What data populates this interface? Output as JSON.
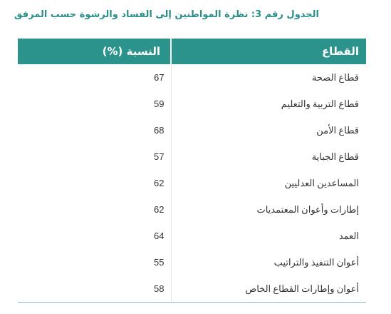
{
  "caption": "الجدول رقم  3: نظرة المواطنين إلى الفساد والرشوة حسب المرفق",
  "table": {
    "headers": {
      "sector": "القطاع",
      "percentage": "النسبة (%)"
    },
    "rows": [
      {
        "sector": "قطاع الصحة",
        "percentage": "67"
      },
      {
        "sector": "قطاع التربية والتعليم",
        "percentage": "59"
      },
      {
        "sector": "قطاع الأمن",
        "percentage": "68"
      },
      {
        "sector": "قطاع الجباية",
        "percentage": "57"
      },
      {
        "sector": "المساعدين العدليين",
        "percentage": "62"
      },
      {
        "sector": "إطارات وأعوان المعتمديات",
        "percentage": "62"
      },
      {
        "sector": "العمد",
        "percentage": "64"
      },
      {
        "sector": "أعوان التنفيذ والتراتيب",
        "percentage": "55"
      },
      {
        "sector": "أعوان وإطارات القطاع الخاص",
        "percentage": "58"
      }
    ]
  },
  "colors": {
    "accent": "#2b938b",
    "caption": "#2b8f88",
    "rule": "#8fbcd6"
  }
}
